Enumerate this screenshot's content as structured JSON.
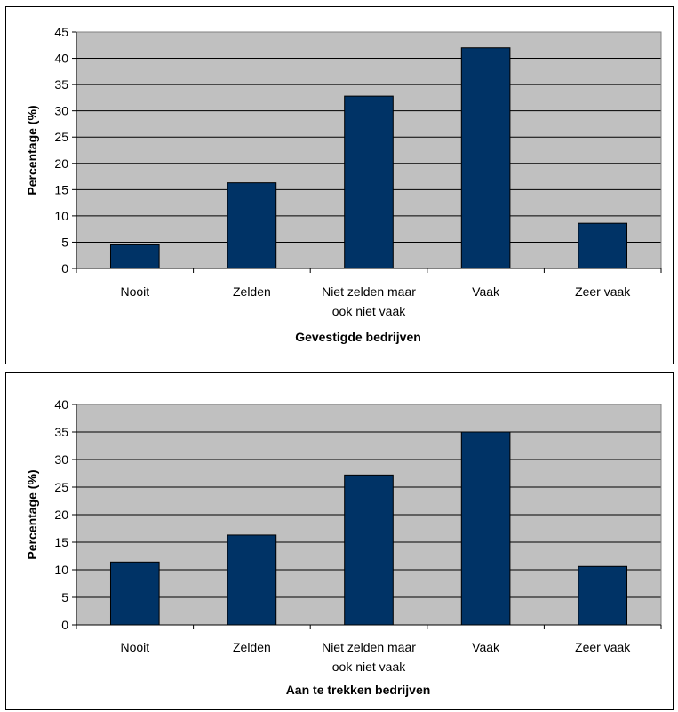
{
  "chart_data": [
    {
      "type": "bar",
      "categories": [
        "Nooit",
        "Zelden",
        "Niet zelden maar ook niet vaak",
        "Vaak",
        "Zeer vaak"
      ],
      "category_lines": [
        [
          "Nooit"
        ],
        [
          "Zelden"
        ],
        [
          "Niet zelden maar",
          "ook niet vaak"
        ],
        [
          "Vaak"
        ],
        [
          "Zeer vaak"
        ]
      ],
      "values": [
        4.5,
        16.3,
        32.8,
        42.0,
        8.6
      ],
      "title": "",
      "xlabel": "Gevestigde bedrijven",
      "ylabel": "Percentage (%)",
      "ylim": [
        0,
        45
      ],
      "yticks": [
        0,
        5,
        10,
        15,
        20,
        25,
        30,
        35,
        40,
        45
      ],
      "grid": true,
      "legend": "none"
    },
    {
      "type": "bar",
      "categories": [
        "Nooit",
        "Zelden",
        "Niet zelden maar ook niet vaak",
        "Vaak",
        "Zeer vaak"
      ],
      "category_lines": [
        [
          "Nooit"
        ],
        [
          "Zelden"
        ],
        [
          "Niet zelden maar",
          "ook niet vaak"
        ],
        [
          "Vaak"
        ],
        [
          "Zeer vaak"
        ]
      ],
      "values": [
        11.4,
        16.3,
        27.2,
        35.0,
        10.6
      ],
      "title": "",
      "xlabel": "Aan te trekken bedrijven",
      "ylabel": "Percentage (%)",
      "ylim": [
        0,
        40
      ],
      "yticks": [
        0,
        5,
        10,
        15,
        20,
        25,
        30,
        35,
        40
      ],
      "grid": true,
      "legend": "none"
    }
  ],
  "colors": {
    "plot_background": "#c0c0c0",
    "bar_fill": "#003366",
    "gridline": "#000000"
  }
}
